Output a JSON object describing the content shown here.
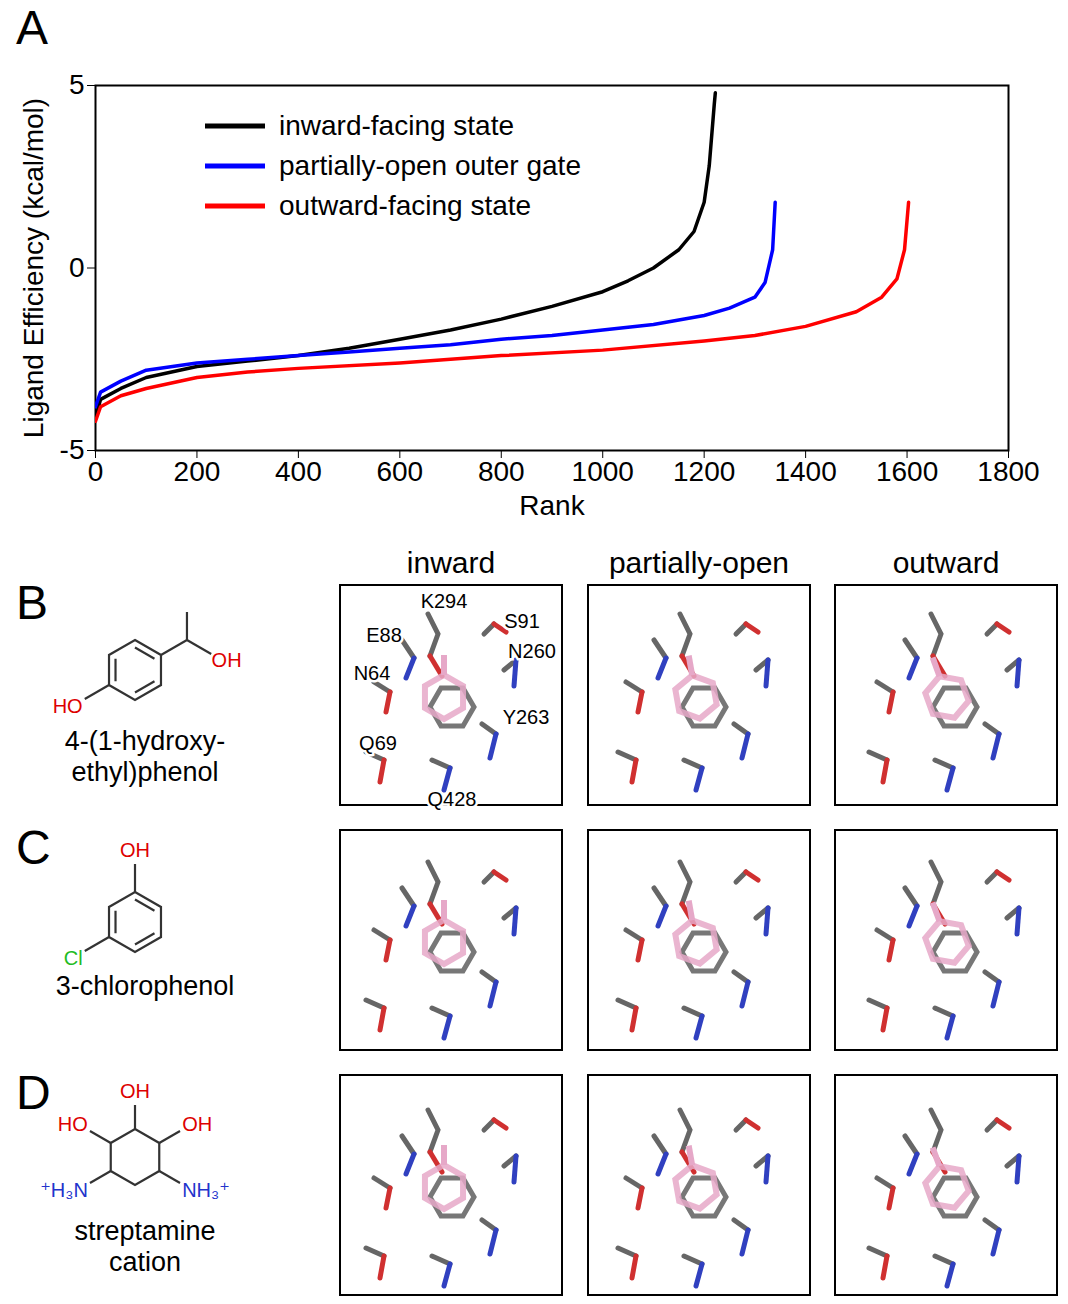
{
  "panel_letter": "A",
  "chart_data": {
    "type": "line",
    "xlabel": "Rank",
    "ylabel": "Ligand Efficiency (kcal/mol)",
    "xlim": [
      0,
      1800
    ],
    "xticks": [
      0,
      200,
      400,
      600,
      800,
      1000,
      1200,
      1400,
      1600,
      1800
    ],
    "ylim": [
      -5,
      5
    ],
    "yticks": [
      -5,
      0,
      5
    ],
    "legend": "top-left",
    "series": [
      {
        "name": "inward-facing state",
        "color": "#000000",
        "x": [
          0,
          10,
          50,
          100,
          200,
          300,
          400,
          500,
          600,
          700,
          800,
          900,
          1000,
          1050,
          1100,
          1150,
          1180,
          1200,
          1210,
          1220,
          1222
        ],
        "values": [
          -4.1,
          -3.6,
          -3.3,
          -3.0,
          -2.7,
          -2.55,
          -2.4,
          -2.2,
          -1.95,
          -1.7,
          -1.4,
          -1.05,
          -0.65,
          -0.35,
          0.0,
          0.5,
          1.0,
          1.8,
          2.8,
          4.5,
          4.8
        ]
      },
      {
        "name": "partially-open outer gate",
        "color": "#0000ff",
        "x": [
          0,
          10,
          50,
          100,
          200,
          300,
          400,
          500,
          600,
          700,
          800,
          900,
          1000,
          1100,
          1200,
          1250,
          1300,
          1320,
          1335,
          1340
        ],
        "values": [
          -3.8,
          -3.4,
          -3.1,
          -2.8,
          -2.6,
          -2.5,
          -2.4,
          -2.3,
          -2.2,
          -2.1,
          -1.95,
          -1.85,
          -1.7,
          -1.55,
          -1.3,
          -1.1,
          -0.8,
          -0.4,
          0.5,
          1.8
        ]
      },
      {
        "name": "outward-facing state",
        "color": "#ff0000",
        "x": [
          0,
          10,
          50,
          100,
          200,
          300,
          400,
          600,
          800,
          1000,
          1200,
          1300,
          1400,
          1500,
          1550,
          1580,
          1595,
          1603
        ],
        "values": [
          -4.2,
          -3.8,
          -3.5,
          -3.3,
          -3.0,
          -2.85,
          -2.75,
          -2.6,
          -2.4,
          -2.25,
          -2.0,
          -1.85,
          -1.6,
          -1.2,
          -0.8,
          -0.3,
          0.5,
          1.8
        ]
      }
    ]
  },
  "structures": {
    "columns": [
      "inward",
      "partially-open",
      "outward"
    ],
    "residue_labels": [
      "K294",
      "E88",
      "S91",
      "N260",
      "N64",
      "Y263",
      "Q69",
      "Q428"
    ],
    "rows": [
      {
        "letter": "B",
        "name": "4-(1-hydroxy-ethyl)phenol",
        "atom_labels": [
          "OH",
          "HO"
        ]
      },
      {
        "letter": "C",
        "name": "3-chlorophenol",
        "atom_labels": [
          "OH",
          "Cl"
        ]
      },
      {
        "letter": "D",
        "name": "streptamine cation",
        "atom_labels": [
          "OH",
          "HO",
          "OH",
          "⁺H₃N",
          "NH₃⁺"
        ]
      }
    ]
  }
}
